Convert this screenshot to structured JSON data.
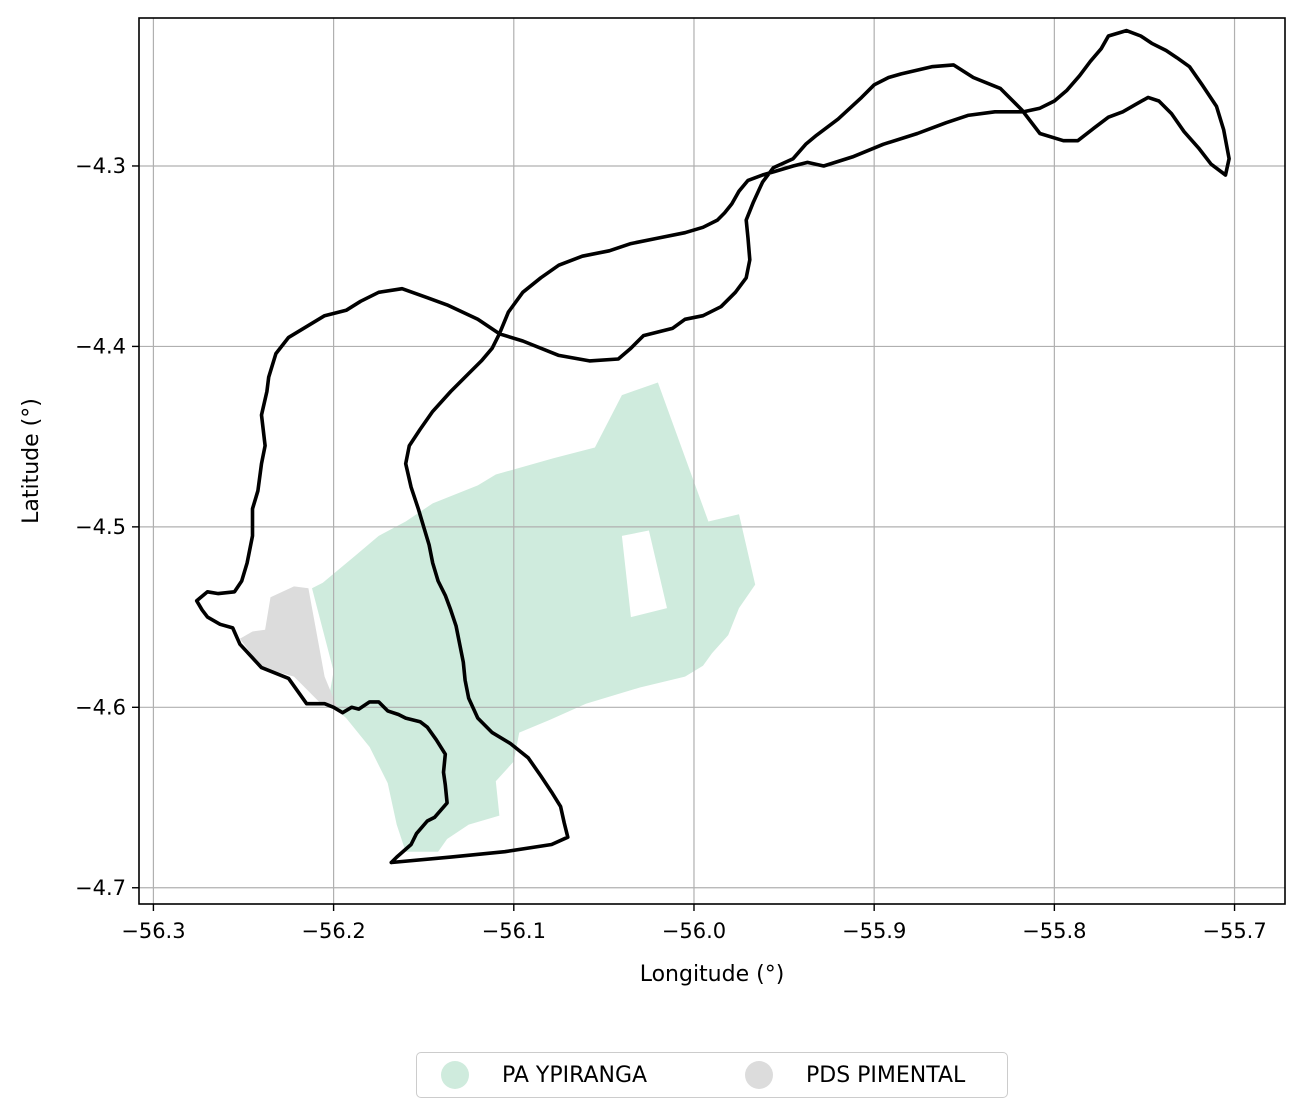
{
  "map": {
    "x_label": "Longitude (°)",
    "y_label": "Latitude (°)",
    "x_ticks": [
      {
        "value": -56.3,
        "label": "−56.3"
      },
      {
        "value": -56.2,
        "label": "−56.2"
      },
      {
        "value": -56.1,
        "label": "−56.1"
      },
      {
        "value": -56.0,
        "label": "−56.0"
      },
      {
        "value": -55.9,
        "label": "−55.9"
      },
      {
        "value": -55.8,
        "label": "−55.8"
      },
      {
        "value": -55.7,
        "label": "−55.7"
      }
    ],
    "y_ticks": [
      {
        "value": -4.3,
        "label": "−4.3"
      },
      {
        "value": -4.4,
        "label": "−4.4"
      },
      {
        "value": -4.5,
        "label": "−4.5"
      },
      {
        "value": -4.6,
        "label": "−4.6"
      },
      {
        "value": -4.7,
        "label": "−4.7"
      }
    ],
    "xlim": [
      -56.308,
      -55.672
    ],
    "ylim": [
      -4.709,
      -4.218
    ],
    "grid": true,
    "legend_position": "bottom-center",
    "layers": {
      "boundary": {
        "stroke": "#000000"
      },
      "pa_ypiranga": {
        "name": "PA YPIRANGA",
        "color": "#cfebdd",
        "polygon": [
          [
            -56.212,
            -4.534
          ],
          [
            -56.206,
            -4.531
          ],
          [
            -56.188,
            -4.516
          ],
          [
            -56.175,
            -4.505
          ],
          [
            -56.16,
            -4.497
          ],
          [
            -56.145,
            -4.487
          ],
          [
            -56.12,
            -4.477
          ],
          [
            -56.11,
            -4.471
          ],
          [
            -56.078,
            -4.462
          ],
          [
            -56.055,
            -4.456
          ],
          [
            -56.04,
            -4.427
          ],
          [
            -56.02,
            -4.42
          ],
          [
            -55.992,
            -4.497
          ],
          [
            -55.975,
            -4.493
          ],
          [
            -55.966,
            -4.532
          ],
          [
            -55.975,
            -4.545
          ],
          [
            -55.981,
            -4.56
          ],
          [
            -55.99,
            -4.57
          ],
          [
            -55.995,
            -4.577
          ],
          [
            -56.005,
            -4.583
          ],
          [
            -56.03,
            -4.589
          ],
          [
            -56.06,
            -4.598
          ],
          [
            -56.08,
            -4.607
          ],
          [
            -56.097,
            -4.614
          ],
          [
            -56.1,
            -4.63
          ],
          [
            -56.11,
            -4.641
          ],
          [
            -56.108,
            -4.66
          ],
          [
            -56.125,
            -4.665
          ],
          [
            -56.137,
            -4.673
          ],
          [
            -56.142,
            -4.68
          ],
          [
            -56.16,
            -4.68
          ],
          [
            -56.165,
            -4.665
          ],
          [
            -56.17,
            -4.642
          ],
          [
            -56.18,
            -4.622
          ],
          [
            -56.193,
            -4.606
          ],
          [
            -56.203,
            -4.597
          ],
          [
            -56.2,
            -4.58
          ],
          [
            -56.212,
            -4.534
          ]
        ],
        "holes": [
          [
            [
              -56.04,
              -4.505
            ],
            [
              -56.025,
              -4.502
            ],
            [
              -56.015,
              -4.545
            ],
            [
              -56.035,
              -4.55
            ],
            [
              -56.04,
              -4.505
            ]
          ]
        ]
      },
      "pds_pimental": {
        "name": "PDS PIMENTAL",
        "color": "#dcdcdc",
        "polygon": [
          [
            -56.235,
            -4.539
          ],
          [
            -56.222,
            -4.533
          ],
          [
            -56.214,
            -4.534
          ],
          [
            -56.205,
            -4.583
          ],
          [
            -56.198,
            -4.6
          ],
          [
            -56.207,
            -4.598
          ],
          [
            -56.222,
            -4.583
          ],
          [
            -56.24,
            -4.578
          ],
          [
            -56.252,
            -4.562
          ],
          [
            -56.245,
            -4.558
          ],
          [
            -56.238,
            -4.557
          ],
          [
            -56.235,
            -4.539
          ]
        ]
      }
    },
    "boundary_lines": [
      [
        [
          -56.168,
          -4.686
        ],
        [
          -56.165,
          -4.683
        ],
        [
          -56.157,
          -4.676
        ],
        [
          -56.154,
          -4.67
        ],
        [
          -56.148,
          -4.663
        ],
        [
          -56.144,
          -4.661
        ],
        [
          -56.137,
          -4.653
        ],
        [
          -56.138,
          -4.643
        ],
        [
          -56.139,
          -4.636
        ],
        [
          -56.138,
          -4.626
        ],
        [
          -56.143,
          -4.618
        ],
        [
          -56.148,
          -4.611
        ],
        [
          -56.152,
          -4.608
        ],
        [
          -56.16,
          -4.606
        ],
        [
          -56.164,
          -4.604
        ],
        [
          -56.17,
          -4.602
        ],
        [
          -56.175,
          -4.597
        ],
        [
          -56.18,
          -4.597
        ],
        [
          -56.186,
          -4.601
        ],
        [
          -56.19,
          -4.6
        ],
        [
          -56.195,
          -4.603
        ],
        [
          -56.2,
          -4.6
        ],
        [
          -56.205,
          -4.598
        ],
        [
          -56.215,
          -4.598
        ],
        [
          -56.225,
          -4.584
        ],
        [
          -56.24,
          -4.578
        ],
        [
          -56.252,
          -4.565
        ],
        [
          -56.256,
          -4.556
        ],
        [
          -56.263,
          -4.554
        ],
        [
          -56.27,
          -4.55
        ],
        [
          -56.273,
          -4.546
        ],
        [
          -56.276,
          -4.541
        ],
        [
          -56.27,
          -4.536
        ],
        [
          -56.264,
          -4.537
        ],
        [
          -56.255,
          -4.536
        ],
        [
          -56.251,
          -4.53
        ],
        [
          -56.248,
          -4.52
        ],
        [
          -56.245,
          -4.505
        ],
        [
          -56.245,
          -4.49
        ],
        [
          -56.242,
          -4.48
        ],
        [
          -56.24,
          -4.465
        ],
        [
          -56.238,
          -4.455
        ],
        [
          -56.24,
          -4.438
        ],
        [
          -56.237,
          -4.425
        ],
        [
          -56.236,
          -4.417
        ],
        [
          -56.232,
          -4.404
        ],
        [
          -56.225,
          -4.395
        ],
        [
          -56.215,
          -4.389
        ],
        [
          -56.205,
          -4.383
        ],
        [
          -56.193,
          -4.38
        ],
        [
          -56.185,
          -4.375
        ],
        [
          -56.175,
          -4.37
        ],
        [
          -56.162,
          -4.368
        ],
        [
          -56.148,
          -4.373
        ],
        [
          -56.137,
          -4.377
        ],
        [
          -56.12,
          -4.385
        ],
        [
          -56.108,
          -4.393
        ],
        [
          -56.095,
          -4.397
        ],
        [
          -56.075,
          -4.405
        ],
        [
          -56.058,
          -4.408
        ],
        [
          -56.042,
          -4.407
        ],
        [
          -56.035,
          -4.401
        ],
        [
          -56.028,
          -4.394
        ],
        [
          -56.012,
          -4.39
        ],
        [
          -56.005,
          -4.385
        ],
        [
          -55.995,
          -4.383
        ],
        [
          -55.985,
          -4.378
        ],
        [
          -55.977,
          -4.37
        ],
        [
          -55.971,
          -4.362
        ],
        [
          -55.969,
          -4.352
        ],
        [
          -55.97,
          -4.34
        ],
        [
          -55.971,
          -4.33
        ],
        [
          -55.967,
          -4.32
        ],
        [
          -55.962,
          -4.309
        ],
        [
          -55.956,
          -4.301
        ],
        [
          -55.945,
          -4.296
        ],
        [
          -55.938,
          -4.288
        ],
        [
          -55.932,
          -4.283
        ],
        [
          -55.92,
          -4.274
        ],
        [
          -55.907,
          -4.262
        ],
        [
          -55.9,
          -4.255
        ],
        [
          -55.892,
          -4.251
        ],
        [
          -55.885,
          -4.249
        ],
        [
          -55.868,
          -4.245
        ],
        [
          -55.856,
          -4.244
        ],
        [
          -55.845,
          -4.251
        ],
        [
          -55.83,
          -4.257
        ],
        [
          -55.818,
          -4.269
        ],
        [
          -55.808,
          -4.282
        ],
        [
          -55.795,
          -4.286
        ],
        [
          -55.787,
          -4.286
        ],
        [
          -55.778,
          -4.279
        ],
        [
          -55.77,
          -4.273
        ],
        [
          -55.762,
          -4.27
        ],
        [
          -55.755,
          -4.266
        ],
        [
          -55.748,
          -4.262
        ],
        [
          -55.742,
          -4.264
        ],
        [
          -55.735,
          -4.271
        ],
        [
          -55.728,
          -4.281
        ],
        [
          -55.72,
          -4.29
        ],
        [
          -55.713,
          -4.299
        ],
        [
          -55.705,
          -4.305
        ],
        [
          -55.703,
          -4.296
        ],
        [
          -55.706,
          -4.28
        ],
        [
          -55.71,
          -4.267
        ],
        [
          -55.718,
          -4.255
        ],
        [
          -55.725,
          -4.245
        ],
        [
          -55.732,
          -4.24
        ],
        [
          -55.738,
          -4.236
        ],
        [
          -55.746,
          -4.232
        ],
        [
          -55.752,
          -4.228
        ],
        [
          -55.76,
          -4.225
        ],
        [
          -55.77,
          -4.228
        ],
        [
          -55.774,
          -4.235
        ],
        [
          -55.78,
          -4.242
        ],
        [
          -55.786,
          -4.25
        ],
        [
          -55.793,
          -4.258
        ],
        [
          -55.8,
          -4.264
        ],
        [
          -55.808,
          -4.268
        ],
        [
          -55.817,
          -4.27
        ],
        [
          -55.822,
          -4.27
        ],
        [
          -55.833,
          -4.27
        ],
        [
          -55.848,
          -4.272
        ],
        [
          -55.86,
          -4.276
        ],
        [
          -55.876,
          -4.282
        ],
        [
          -55.895,
          -4.288
        ],
        [
          -55.912,
          -4.295
        ],
        [
          -55.928,
          -4.3
        ],
        [
          -55.937,
          -4.298
        ],
        [
          -55.945,
          -4.3
        ],
        [
          -55.955,
          -4.303
        ],
        [
          -55.962,
          -4.305
        ],
        [
          -55.97,
          -4.308
        ],
        [
          -55.975,
          -4.314
        ],
        [
          -55.979,
          -4.321
        ],
        [
          -55.983,
          -4.326
        ],
        [
          -55.987,
          -4.33
        ],
        [
          -55.995,
          -4.334
        ],
        [
          -56.005,
          -4.337
        ],
        [
          -56.02,
          -4.34
        ],
        [
          -56.035,
          -4.343
        ],
        [
          -56.047,
          -4.347
        ],
        [
          -56.062,
          -4.35
        ],
        [
          -56.075,
          -4.355
        ],
        [
          -56.085,
          -4.362
        ],
        [
          -56.095,
          -4.37
        ],
        [
          -56.103,
          -4.381
        ],
        [
          -56.108,
          -4.393
        ],
        [
          -56.112,
          -4.401
        ],
        [
          -56.118,
          -4.408
        ],
        [
          -56.125,
          -4.415
        ],
        [
          -56.135,
          -4.425
        ],
        [
          -56.145,
          -4.436
        ],
        [
          -56.152,
          -4.446
        ],
        [
          -56.158,
          -4.455
        ],
        [
          -56.16,
          -4.465
        ],
        [
          -56.157,
          -4.478
        ],
        [
          -56.153,
          -4.49
        ],
        [
          -56.15,
          -4.5
        ],
        [
          -56.147,
          -4.51
        ],
        [
          -56.145,
          -4.52
        ],
        [
          -56.142,
          -4.53
        ],
        [
          -56.138,
          -4.538
        ],
        [
          -56.135,
          -4.546
        ],
        [
          -56.132,
          -4.555
        ],
        [
          -56.13,
          -4.565
        ],
        [
          -56.128,
          -4.575
        ],
        [
          -56.127,
          -4.585
        ],
        [
          -56.125,
          -4.595
        ],
        [
          -56.12,
          -4.606
        ],
        [
          -56.112,
          -4.614
        ],
        [
          -56.102,
          -4.62
        ],
        [
          -56.092,
          -4.628
        ],
        [
          -56.085,
          -4.638
        ],
        [
          -56.079,
          -4.647
        ],
        [
          -56.074,
          -4.655
        ],
        [
          -56.072,
          -4.664
        ],
        [
          -56.07,
          -4.672
        ],
        [
          -56.079,
          -4.676
        ],
        [
          -56.105,
          -4.68
        ],
        [
          -56.135,
          -4.683
        ],
        [
          -56.168,
          -4.686
        ]
      ]
    ]
  },
  "legend": {
    "items": [
      {
        "label": "PA YPIRANGA",
        "color": "#cfebdd"
      },
      {
        "label": "PDS PIMENTAL",
        "color": "#dcdcdc"
      }
    ]
  }
}
